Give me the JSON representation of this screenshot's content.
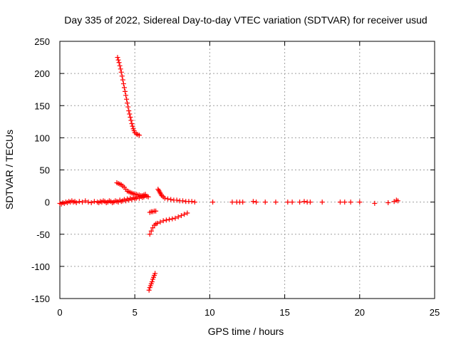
{
  "chart_data": {
    "type": "scatter",
    "title": "Day 335 of 2022, Sidereal Day-to-day VTEC variation (SDTVAR) for receiver usud",
    "xlabel": "GPS time / hours",
    "ylabel": "SDTVAR / TECUs",
    "xlim": [
      0,
      25
    ],
    "ylim": [
      -150,
      250
    ],
    "xticks": [
      0,
      5,
      10,
      15,
      20,
      25
    ],
    "yticks": [
      -150,
      -100,
      -50,
      0,
      50,
      100,
      150,
      200,
      250
    ],
    "grid": true,
    "marker": "+",
    "color": "#ff0000",
    "series": [
      {
        "name": "steep descending arc",
        "points": [
          [
            3.85,
            225
          ],
          [
            3.9,
            221
          ],
          [
            3.95,
            217
          ],
          [
            4.0,
            212
          ],
          [
            4.05,
            207
          ],
          [
            4.1,
            202
          ],
          [
            4.15,
            196
          ],
          [
            4.2,
            190
          ],
          [
            4.25,
            184
          ],
          [
            4.3,
            178
          ],
          [
            4.35,
            172
          ],
          [
            4.4,
            166
          ],
          [
            4.45,
            160
          ],
          [
            4.5,
            154
          ],
          [
            4.55,
            148
          ],
          [
            4.6,
            142
          ],
          [
            4.65,
            137
          ],
          [
            4.7,
            132
          ],
          [
            4.75,
            127
          ],
          [
            4.8,
            122
          ],
          [
            4.85,
            118
          ],
          [
            4.9,
            114
          ],
          [
            4.95,
            111
          ],
          [
            5.0,
            108
          ],
          [
            5.1,
            106
          ],
          [
            5.2,
            105
          ],
          [
            5.3,
            104
          ]
        ]
      },
      {
        "name": "near-zero band",
        "points": [
          [
            0.0,
            -2
          ],
          [
            0.1,
            -3
          ],
          [
            0.2,
            -1
          ],
          [
            0.3,
            -2
          ],
          [
            0.4,
            0
          ],
          [
            0.5,
            -1
          ],
          [
            0.6,
            1
          ],
          [
            0.7,
            0
          ],
          [
            0.8,
            2
          ],
          [
            0.9,
            0
          ],
          [
            1.0,
            1
          ],
          [
            1.1,
            -1
          ],
          [
            1.3,
            1
          ],
          [
            1.5,
            0
          ],
          [
            1.7,
            2
          ],
          [
            1.9,
            0
          ],
          [
            2.1,
            -1
          ],
          [
            2.3,
            1
          ],
          [
            2.5,
            0
          ],
          [
            2.6,
            -1
          ],
          [
            2.7,
            1
          ],
          [
            2.8,
            0
          ],
          [
            2.9,
            2
          ],
          [
            3.0,
            1
          ],
          [
            3.1,
            -1
          ],
          [
            3.2,
            0
          ],
          [
            3.3,
            2
          ],
          [
            3.4,
            1
          ],
          [
            3.5,
            -1
          ],
          [
            3.6,
            0
          ],
          [
            3.7,
            2
          ],
          [
            3.8,
            1
          ],
          [
            3.9,
            0
          ],
          [
            4.0,
            3
          ],
          [
            4.1,
            1
          ],
          [
            4.2,
            2
          ],
          [
            4.3,
            4
          ],
          [
            4.4,
            2
          ],
          [
            4.5,
            5
          ],
          [
            4.6,
            3
          ],
          [
            4.7,
            6
          ],
          [
            4.8,
            4
          ],
          [
            4.9,
            7
          ],
          [
            5.0,
            5
          ],
          [
            5.1,
            6
          ],
          [
            5.2,
            8
          ],
          [
            5.3,
            6
          ],
          [
            5.4,
            9
          ],
          [
            5.5,
            7
          ],
          [
            5.6,
            8
          ],
          [
            5.7,
            10
          ],
          [
            5.8,
            9
          ],
          [
            5.9,
            8
          ]
        ]
      },
      {
        "name": "small rising arc",
        "points": [
          [
            3.8,
            30
          ],
          [
            3.9,
            29
          ],
          [
            4.0,
            28
          ],
          [
            4.1,
            27
          ],
          [
            4.2,
            25
          ],
          [
            4.3,
            23
          ],
          [
            4.4,
            20
          ],
          [
            4.5,
            17
          ],
          [
            4.6,
            16
          ],
          [
            4.7,
            15
          ],
          [
            4.8,
            14
          ],
          [
            4.9,
            13
          ],
          [
            5.0,
            12
          ],
          [
            5.1,
            12
          ],
          [
            5.2,
            11
          ],
          [
            5.3,
            11
          ],
          [
            5.4,
            10
          ],
          [
            5.5,
            10
          ],
          [
            5.6,
            11
          ],
          [
            5.7,
            12
          ]
        ]
      },
      {
        "name": "arc from 6.6h",
        "points": [
          [
            6.55,
            20
          ],
          [
            6.6,
            18
          ],
          [
            6.65,
            16
          ],
          [
            6.7,
            14
          ],
          [
            6.75,
            12
          ],
          [
            6.8,
            10
          ],
          [
            6.9,
            8
          ],
          [
            7.0,
            6
          ],
          [
            7.2,
            5
          ],
          [
            7.4,
            4
          ],
          [
            7.6,
            3
          ],
          [
            7.8,
            3
          ],
          [
            8.0,
            2
          ],
          [
            8.2,
            2
          ],
          [
            8.4,
            1
          ],
          [
            8.6,
            1
          ],
          [
            8.8,
            1
          ],
          [
            9.0,
            0
          ]
        ]
      },
      {
        "name": "negative arc",
        "points": [
          [
            6.0,
            -50
          ],
          [
            6.1,
            -45
          ],
          [
            6.2,
            -40
          ],
          [
            6.3,
            -36
          ],
          [
            6.4,
            -34
          ],
          [
            6.5,
            -33
          ],
          [
            6.7,
            -31
          ],
          [
            6.9,
            -29
          ],
          [
            7.1,
            -28
          ],
          [
            7.3,
            -27
          ],
          [
            7.5,
            -26
          ],
          [
            7.7,
            -25
          ],
          [
            7.9,
            -23
          ],
          [
            8.1,
            -21
          ],
          [
            8.3,
            -19
          ],
          [
            8.5,
            -17
          ]
        ]
      },
      {
        "name": "small negative cluster",
        "points": [
          [
            6.0,
            -16
          ],
          [
            6.1,
            -15
          ],
          [
            6.2,
            -15
          ],
          [
            6.3,
            -14
          ],
          [
            6.4,
            -14
          ]
        ]
      },
      {
        "name": "deep negative arc",
        "points": [
          [
            5.95,
            -137
          ],
          [
            6.0,
            -133
          ],
          [
            6.05,
            -130
          ],
          [
            6.1,
            -127
          ],
          [
            6.15,
            -124
          ],
          [
            6.2,
            -120
          ],
          [
            6.25,
            -117
          ],
          [
            6.3,
            -114
          ],
          [
            6.35,
            -111
          ]
        ]
      },
      {
        "name": "sparse late points",
        "points": [
          [
            10.2,
            0
          ],
          [
            11.5,
            0
          ],
          [
            11.8,
            0
          ],
          [
            12.0,
            0
          ],
          [
            12.2,
            0
          ],
          [
            12.9,
            1
          ],
          [
            13.1,
            0
          ],
          [
            13.7,
            0
          ],
          [
            14.4,
            0
          ],
          [
            15.2,
            0
          ],
          [
            15.5,
            0
          ],
          [
            16.0,
            0
          ],
          [
            16.3,
            1
          ],
          [
            16.5,
            0
          ],
          [
            16.7,
            0
          ],
          [
            17.5,
            0
          ],
          [
            18.7,
            0
          ],
          [
            19.0,
            0
          ],
          [
            19.4,
            0
          ],
          [
            20.0,
            0
          ],
          [
            21.0,
            -2
          ],
          [
            21.9,
            -1
          ],
          [
            22.3,
            1
          ],
          [
            22.45,
            3
          ],
          [
            22.55,
            2
          ]
        ]
      }
    ]
  }
}
